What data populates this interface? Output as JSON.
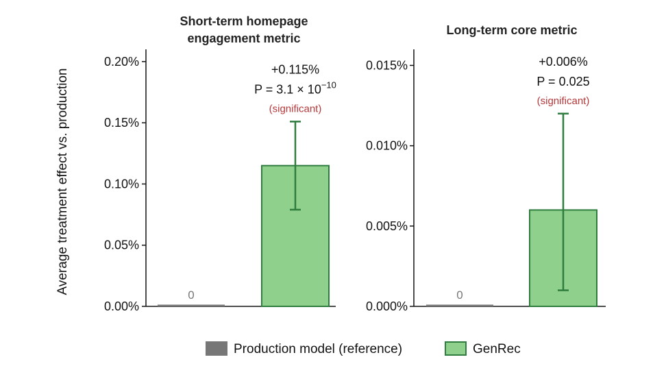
{
  "ylabel": "Average treatment effect vs. production",
  "colors": {
    "production_fill": "#777777",
    "genrec_fill": "#8fd08c",
    "genrec_edge": "#2e7d3e",
    "significant": "#b5383a",
    "axis": "#111111"
  },
  "legend": {
    "placement": "bottom-center",
    "items": [
      {
        "label": "Production model (reference)",
        "color": "#777777",
        "edge": "#777777"
      },
      {
        "label": "GenRec",
        "color": "#8fd08c",
        "edge": "#2e7d3e"
      }
    ]
  },
  "chart_data": [
    {
      "type": "bar",
      "title": [
        "Short-term homepage",
        "engagement metric"
      ],
      "ylim": [
        0,
        0.0021
      ],
      "yticks": [
        0,
        0.0005,
        0.001,
        0.0015,
        0.002
      ],
      "ytick_labels": [
        "0.00%",
        "0.05%",
        "0.10%",
        "0.15%",
        "0.20%"
      ],
      "grid": false,
      "series": [
        {
          "name": "Production model (reference)",
          "value": 0,
          "value_label": "0"
        },
        {
          "name": "GenRec",
          "value": 0.00115,
          "error_low": 0.00079,
          "error_high": 0.00151,
          "annotation": {
            "effect": "+0.115%",
            "p_prefix": "P = 3.1 × 10",
            "p_exp": "−10",
            "note": "(significant)"
          }
        }
      ]
    },
    {
      "type": "bar",
      "title": [
        "Long-term core metric"
      ],
      "ylim": [
        0,
        0.00016
      ],
      "yticks": [
        0,
        5e-05,
        0.0001,
        0.00015
      ],
      "ytick_labels": [
        "0.000%",
        "0.005%",
        "0.010%",
        "0.015%"
      ],
      "grid": false,
      "series": [
        {
          "name": "Production model (reference)",
          "value": 0,
          "value_label": "0"
        },
        {
          "name": "GenRec",
          "value": 6e-05,
          "error_low": 1e-05,
          "error_high": 0.00012,
          "annotation": {
            "effect": "+0.006%",
            "p_text": "P = 0.025",
            "note": "(significant)"
          }
        }
      ]
    }
  ]
}
